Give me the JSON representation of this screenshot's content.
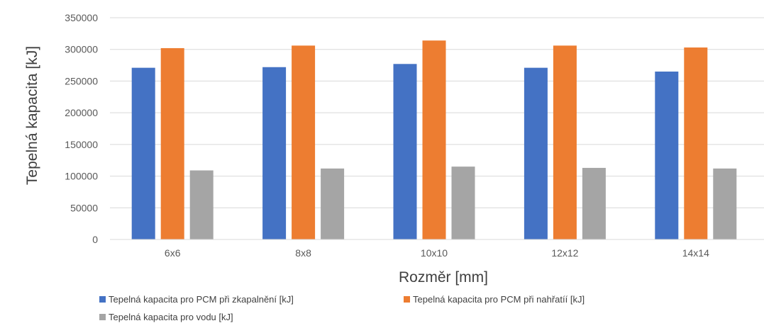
{
  "chart_data": {
    "type": "bar",
    "categories": [
      "6x6",
      "8x8",
      "10x10",
      "12x12",
      "14x14"
    ],
    "series": [
      {
        "name": "Tepelná kapacita pro PCM při zkapalnění [kJ]",
        "color": "#4472C4",
        "values": [
          271000,
          272000,
          277000,
          271000,
          265000
        ]
      },
      {
        "name": "Tepelná kapacita pro PCM při nahřatíí [kJ]",
        "color": "#ED7D31",
        "values": [
          302000,
          306000,
          314000,
          306000,
          303000
        ]
      },
      {
        "name": "Tepelná kapacita pro vodu [kJ]",
        "color": "#A5A5A5",
        "values": [
          109000,
          112000,
          115000,
          113000,
          112000
        ]
      }
    ],
    "yticks": [
      "0",
      "50000",
      "100000",
      "150000",
      "200000",
      "250000",
      "300000",
      "350000"
    ],
    "ylim": [
      0,
      350000
    ],
    "xlabel": "Rozměr [mm]",
    "ylabel": "Tepelná kapacita [kJ]",
    "grid": true,
    "legend_position": "bottom-left"
  }
}
